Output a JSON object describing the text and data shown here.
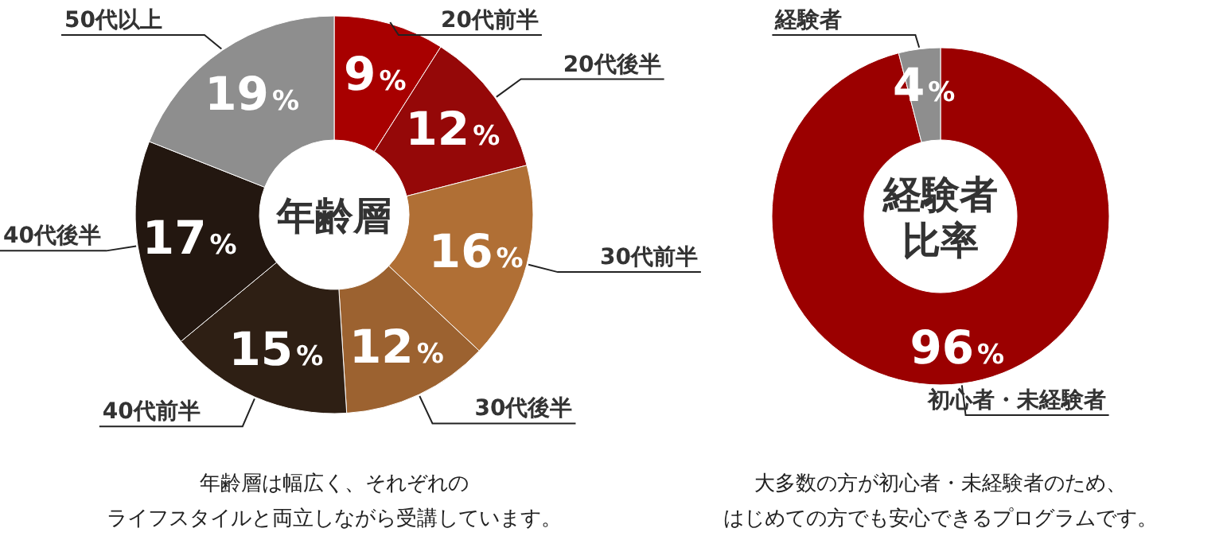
{
  "chart_data": [
    {
      "type": "donut",
      "title": "年齢層",
      "categories": [
        "20代前半",
        "20代後半",
        "30代前半",
        "30代後半",
        "40代前半",
        "40代後半",
        "50代以上"
      ],
      "values": [
        9,
        12,
        16,
        12,
        15,
        17,
        19
      ],
      "colors": [
        "#a80000",
        "#950808",
        "#b06f35",
        "#9c6230",
        "#2e1f14",
        "#231710",
        "#8e8e8e"
      ],
      "value_labels": [
        "9%",
        "12%",
        "16%",
        "12%",
        "15%",
        "17%",
        "19%"
      ],
      "annotations": [
        "年齢層は幅広く、それぞれの",
        "ライフスタイルと両立しながら受講しています。"
      ]
    },
    {
      "type": "donut",
      "title": "経験者比率",
      "categories": [
        "初心者・未経験者",
        "経験者"
      ],
      "values": [
        96,
        4
      ],
      "colors": [
        "#9b0000",
        "#8e8e8e"
      ],
      "value_labels": [
        "96%",
        "4%"
      ],
      "annotations": [
        "大多数の方が初心者・未経験者のため、",
        "はじめての方でも安心できるプログラムです。"
      ]
    }
  ]
}
